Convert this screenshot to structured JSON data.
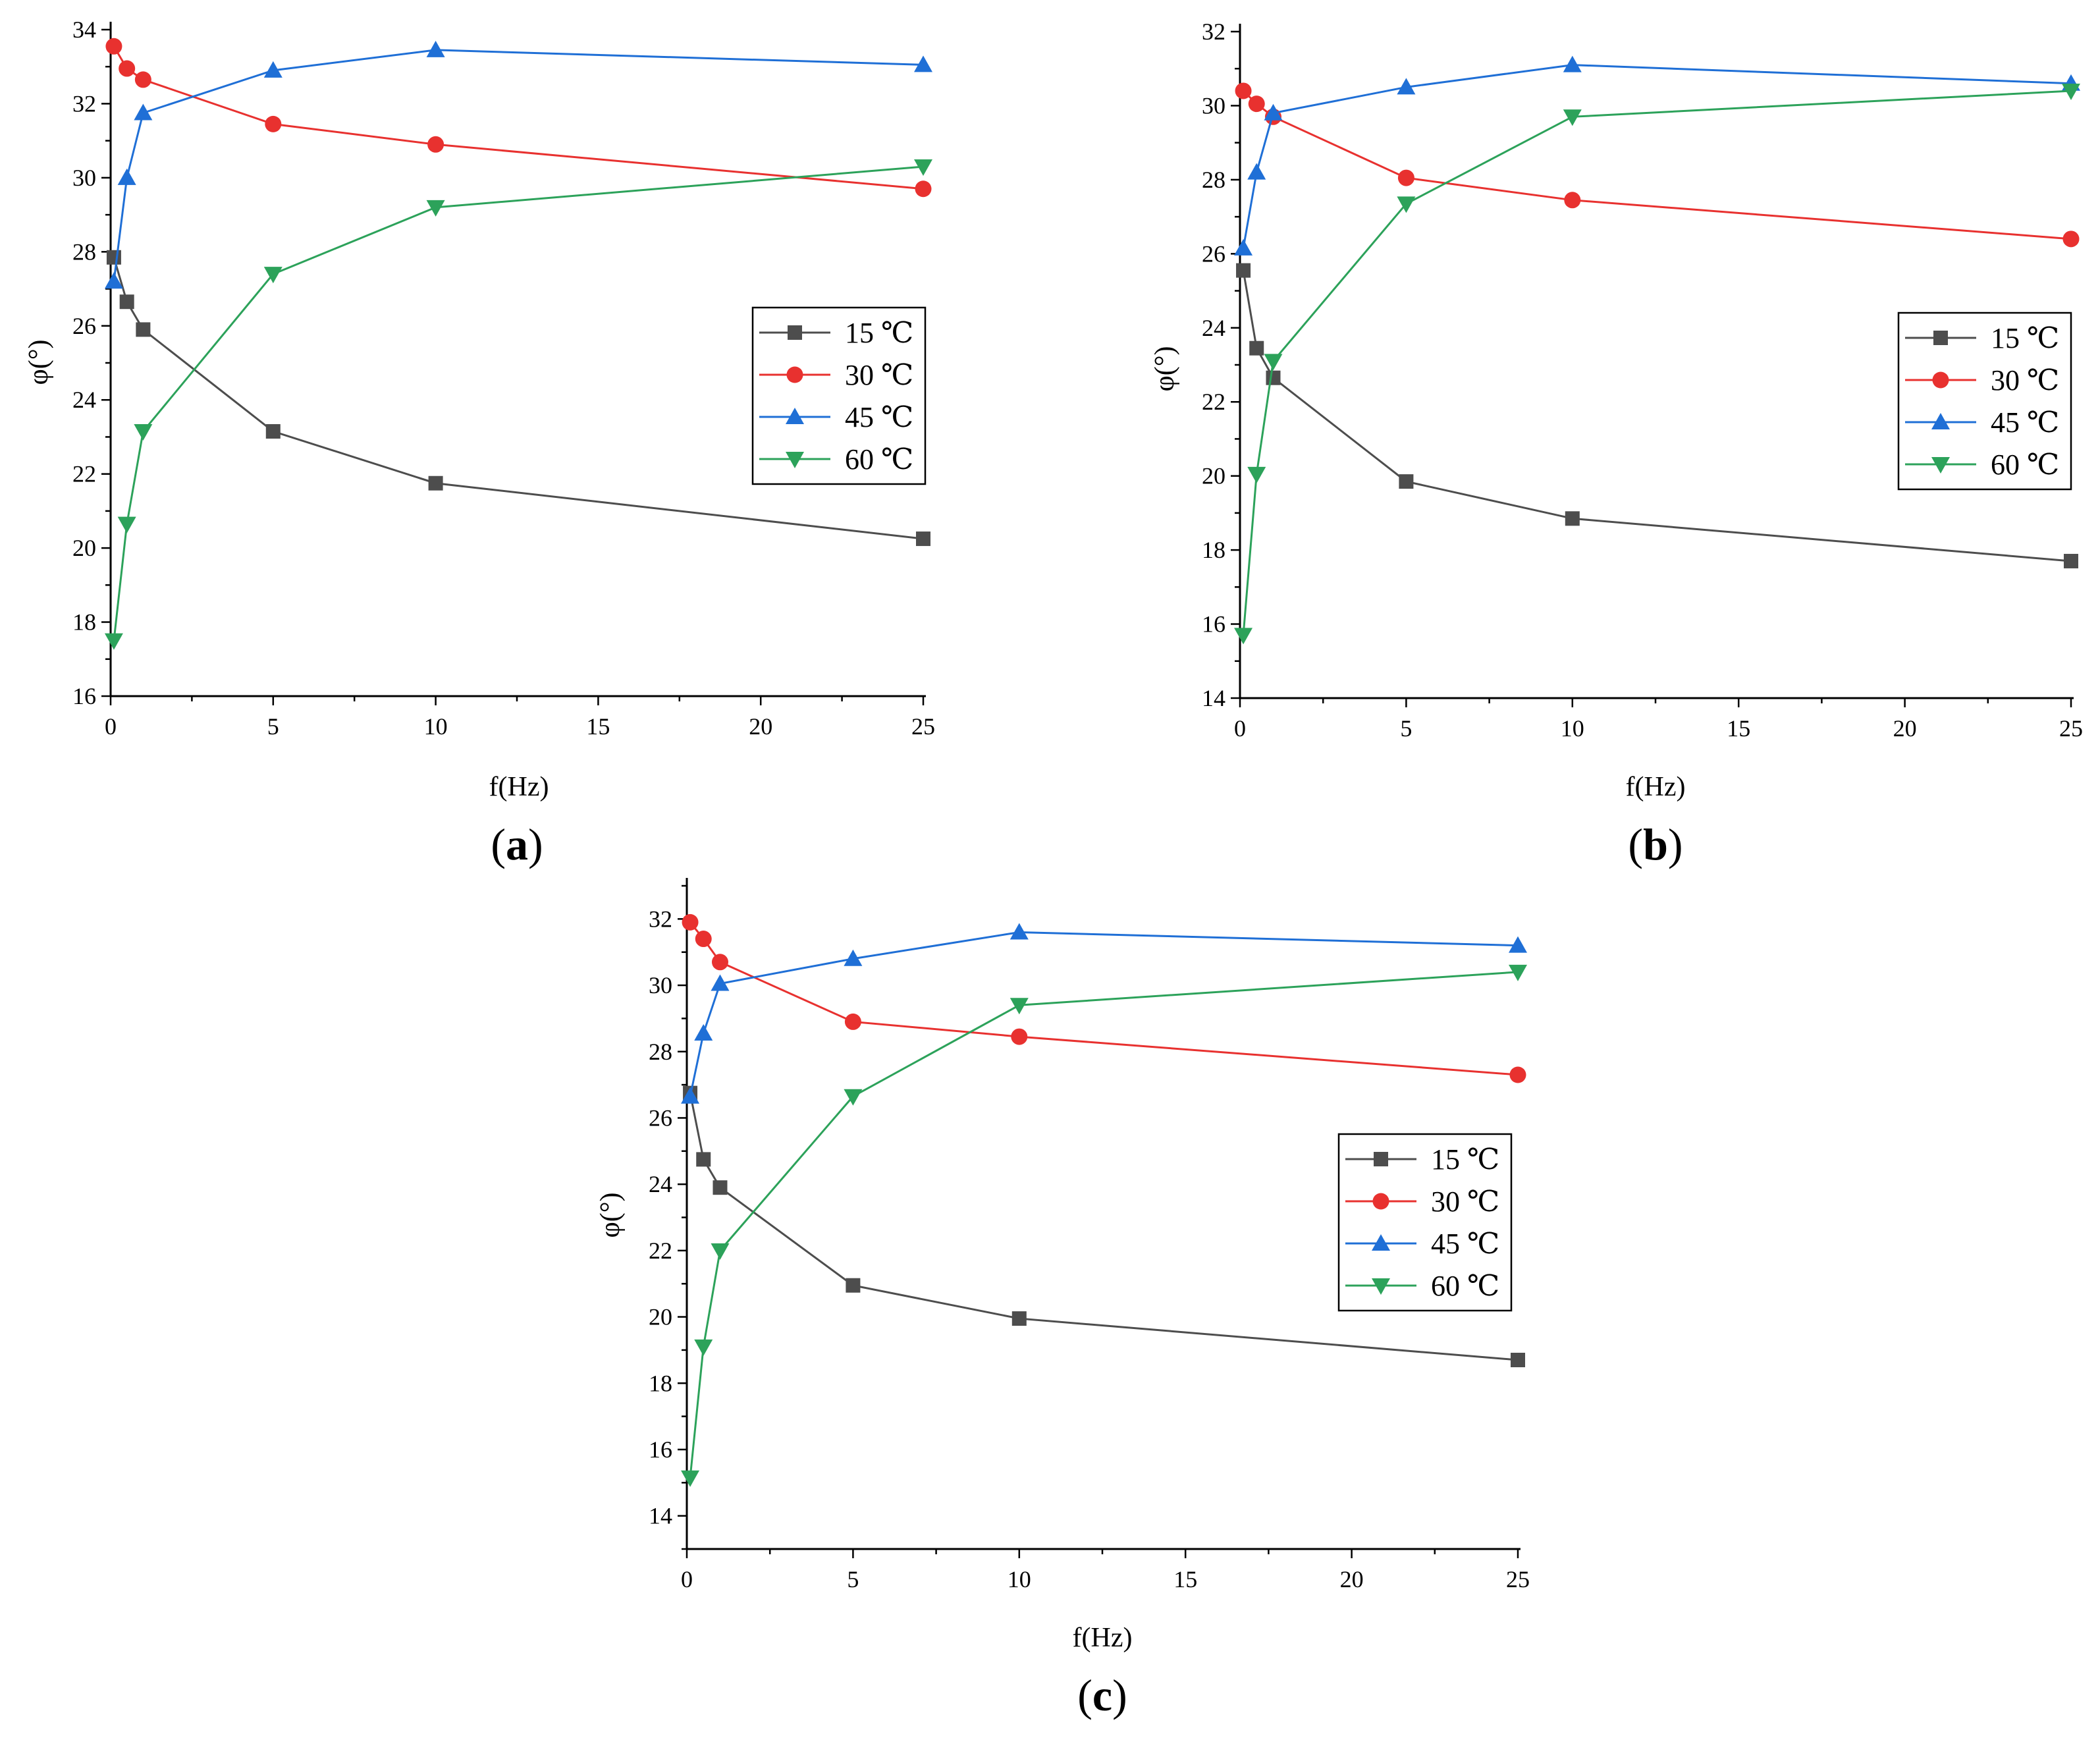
{
  "chart_data": [
    {
      "type": "line",
      "panel_label": "(a)",
      "panel_letter": "a",
      "xlabel": "f(Hz)",
      "ylabel": "φ(°)",
      "xlim": [
        0,
        25
      ],
      "ylim": [
        16,
        34
      ],
      "xticks": [
        0,
        5,
        10,
        15,
        20,
        25
      ],
      "yticks": [
        16,
        18,
        20,
        22,
        24,
        26,
        28,
        30,
        32,
        34
      ],
      "x": [
        0.1,
        0.5,
        1,
        5,
        10,
        25
      ],
      "legend_position": "middle-right",
      "series": [
        {
          "name": "15 ℃",
          "marker": "square",
          "color": "#4d4d4d",
          "values": [
            27.85,
            26.65,
            25.9,
            23.15,
            21.75,
            20.25
          ]
        },
        {
          "name": "30 ℃",
          "marker": "circle",
          "color": "#e8312f",
          "values": [
            33.55,
            32.95,
            32.65,
            31.45,
            30.9,
            29.7
          ]
        },
        {
          "name": "45 ℃",
          "marker": "triangle-up",
          "color": "#1f6fd6",
          "values": [
            27.2,
            30.0,
            31.75,
            32.9,
            33.45,
            33.05
          ]
        },
        {
          "name": "60 ℃",
          "marker": "triangle-down",
          "color": "#2ca25a",
          "values": [
            17.5,
            20.65,
            23.15,
            27.4,
            29.2,
            30.3
          ]
        }
      ]
    },
    {
      "type": "line",
      "panel_label": "(b)",
      "panel_letter": "b",
      "xlabel": "f(Hz)",
      "ylabel": "φ(°)",
      "xlim": [
        0,
        25
      ],
      "ylim": [
        14,
        32
      ],
      "xticks": [
        0,
        5,
        10,
        15,
        20,
        25
      ],
      "yticks": [
        14,
        16,
        18,
        20,
        22,
        24,
        26,
        28,
        30,
        32
      ],
      "x": [
        0.1,
        0.5,
        1,
        5,
        10,
        25
      ],
      "legend_position": "middle-right",
      "series": [
        {
          "name": "15 ℃",
          "marker": "square",
          "color": "#4d4d4d",
          "values": [
            25.55,
            23.45,
            22.65,
            19.85,
            18.85,
            17.7
          ]
        },
        {
          "name": "30 ℃",
          "marker": "circle",
          "color": "#e8312f",
          "values": [
            30.4,
            30.05,
            29.7,
            28.05,
            27.45,
            26.4
          ]
        },
        {
          "name": "45 ℃",
          "marker": "triangle-up",
          "color": "#1f6fd6",
          "values": [
            26.15,
            28.2,
            29.8,
            30.5,
            31.1,
            30.6
          ]
        },
        {
          "name": "60 ℃",
          "marker": "triangle-down",
          "color": "#2ca25a",
          "values": [
            15.7,
            20.05,
            23.1,
            27.35,
            29.7,
            30.4
          ]
        }
      ]
    },
    {
      "type": "line",
      "panel_label": "(c)",
      "panel_letter": "c",
      "xlabel": "f(Hz)",
      "ylabel": "φ(°)",
      "xlim": [
        0,
        25
      ],
      "ylim": [
        13,
        33
      ],
      "xticks": [
        0,
        5,
        10,
        15,
        20,
        25
      ],
      "yticks": [
        14,
        16,
        18,
        20,
        22,
        24,
        26,
        28,
        30,
        32
      ],
      "x": [
        0.1,
        0.5,
        1,
        5,
        10,
        25
      ],
      "legend_position": "middle-right",
      "series": [
        {
          "name": "15 ℃",
          "marker": "square",
          "color": "#4d4d4d",
          "values": [
            26.75,
            24.75,
            23.9,
            20.95,
            19.95,
            18.7
          ]
        },
        {
          "name": "30 ℃",
          "marker": "circle",
          "color": "#e8312f",
          "values": [
            31.9,
            31.4,
            30.7,
            28.9,
            28.45,
            27.3
          ]
        },
        {
          "name": "45 ℃",
          "marker": "triangle-up",
          "color": "#1f6fd6",
          "values": [
            26.65,
            28.55,
            30.05,
            30.8,
            31.6,
            31.2
          ]
        },
        {
          "name": "60 ℃",
          "marker": "triangle-down",
          "color": "#2ca25a",
          "values": [
            15.15,
            19.1,
            22.0,
            26.65,
            29.4,
            30.4
          ]
        }
      ]
    }
  ]
}
